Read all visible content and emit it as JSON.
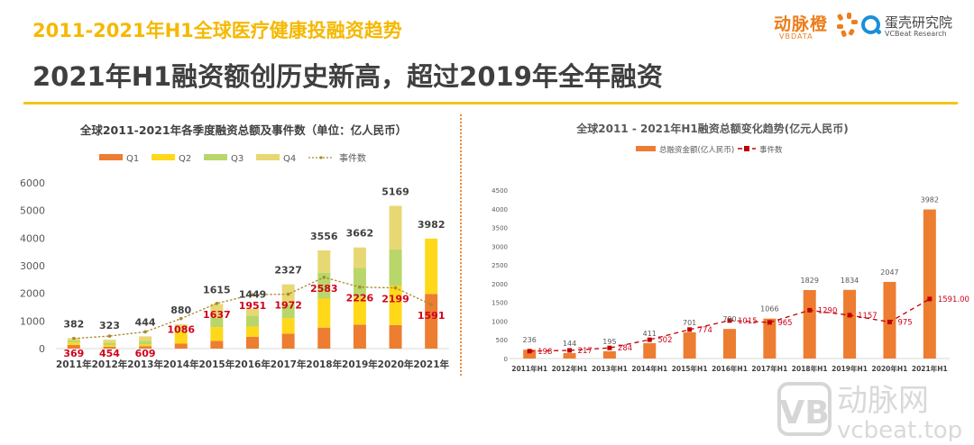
{
  "header": {
    "kicker": "2011-2021年H1全球医疗健康投融资趋势",
    "headline": "2021年H1融资额创历史新高，超过2019年全年融资"
  },
  "logos": {
    "vbdata_cn": "动脉橙",
    "vbdata_en": "VBDATA",
    "vcbeat_cn": "蛋壳研究院",
    "vcbeat_en": "VCBeat Research"
  },
  "watermark": {
    "cn": "动脉网",
    "en": "vcbeat.top",
    "mark": "VB"
  },
  "colors": {
    "q1": "#ed7d31",
    "q2": "#ffd81a",
    "q3": "#b9d66a",
    "q4": "#e8d873",
    "events_line_left": "#a88a2e",
    "events_label": "#d0021b",
    "bar_right": "#ed7d31",
    "events_line_right": "#c00000",
    "accent_title": "#f5b800"
  },
  "chart_data": [
    {
      "type": "bar",
      "stacked": true,
      "title": "全球2011-2021年各季度融资总额及事件数（单位：亿人民币）",
      "categories": [
        "2011年",
        "2012年",
        "2013年",
        "2014年",
        "2015年",
        "2016年",
        "2017年",
        "2018年",
        "2019年",
        "2020年",
        "2021年"
      ],
      "series": [
        {
          "name": "Q1",
          "values": [
            130,
            70,
            90,
            180,
            280,
            430,
            540,
            760,
            870,
            850,
            1980
          ]
        },
        {
          "name": "Q2",
          "values": [
            90,
            60,
            60,
            450,
            500,
            370,
            560,
            1050,
            1000,
            1420,
            2002
          ]
        },
        {
          "name": "Q3",
          "values": [
            80,
            90,
            130,
            0,
            330,
            400,
            500,
            940,
            1050,
            1320,
            0
          ]
        },
        {
          "name": "Q4",
          "values": [
            82,
            103,
            164,
            250,
            505,
            249,
            727,
            806,
            742,
            1579,
            0
          ]
        }
      ],
      "totals": [
        382,
        323,
        444,
        880,
        1615,
        1449,
        2327,
        3556,
        3662,
        5169,
        3982
      ],
      "line_series": {
        "name": "事件数",
        "values": [
          369,
          454,
          609,
          1086,
          1637,
          1951,
          1972,
          2583,
          2226,
          2199,
          1591
        ]
      },
      "legend": [
        "Q1",
        "Q2",
        "Q3",
        "Q4",
        "事件数"
      ],
      "legend_position": "top",
      "yticks": [
        0,
        1000,
        2000,
        3000,
        4000,
        5000,
        6000
      ],
      "ylim": [
        0,
        6000
      ],
      "xlabel": "",
      "ylabel": "",
      "grid": false
    },
    {
      "type": "bar",
      "title": "全球2011 - 2021年H1融资总额变化趋势(亿元人民币)",
      "categories": [
        "2011年H1",
        "2012年H1",
        "2013年H1",
        "2014年H1",
        "2015年H1",
        "2016年H1",
        "2017年H1",
        "2018年H1",
        "2019年H1",
        "2020年H1",
        "2021年H1"
      ],
      "series": [
        {
          "name": "总融资金额(亿人民币)",
          "values": [
            236,
            144,
            195,
            411,
            701,
            790,
            1066,
            1829,
            1834,
            2047,
            3982
          ]
        }
      ],
      "bar_labels": [
        "236",
        "144",
        "195",
        "411",
        "701",
        "790",
        "1066",
        "1829",
        "1834",
        "2047",
        "3982"
      ],
      "line_series": {
        "name": "事件数",
        "values": [
          198,
          217,
          284,
          502,
          774,
          1015,
          965,
          1290,
          1157,
          975,
          1591
        ]
      },
      "line_labels": [
        "198",
        "217",
        "284",
        "502",
        "774",
        "1015",
        "965",
        "1290",
        "1157",
        "975",
        "1591.00"
      ],
      "legend": [
        "总融资金额(亿人民币)",
        "事件数"
      ],
      "legend_position": "top",
      "yticks": [
        0,
        500,
        1000,
        1500,
        2000,
        2500,
        3000,
        3500,
        4000,
        4500
      ],
      "ylim": [
        0,
        4500
      ],
      "xlabel": "",
      "ylabel": "",
      "grid": false
    }
  ]
}
